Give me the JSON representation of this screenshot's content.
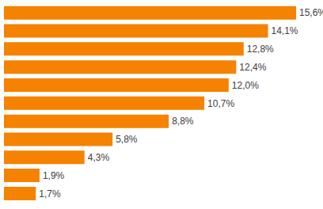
{
  "chart_data": {
    "type": "bar",
    "orientation": "horizontal",
    "categories": [
      null,
      null,
      null,
      null,
      null,
      null,
      null,
      null,
      null,
      null,
      null
    ],
    "values": [
      15.6,
      14.1,
      12.8,
      12.4,
      12.0,
      10.7,
      8.8,
      5.8,
      4.3,
      1.9,
      1.7
    ],
    "value_labels": [
      "15,6%",
      "14,1%",
      "12,8%",
      "12,4%",
      "12,0%",
      "10,7%",
      "8,8%",
      "5,8%",
      "4,3%",
      "1,9%",
      "1,7%"
    ],
    "color": "#f58200",
    "data_labels": true,
    "tick_labels": false,
    "grid": false
  }
}
